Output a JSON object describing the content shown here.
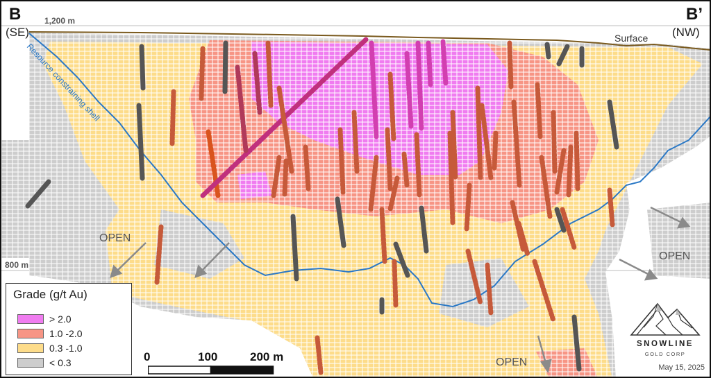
{
  "section_start": {
    "letter": "B",
    "direction": "(SE)"
  },
  "section_end": {
    "letter": "B’",
    "direction": "(NW)"
  },
  "elevations": {
    "top": "1,200 m",
    "bottom": "800 m"
  },
  "surface_label": "Surface",
  "shell_label": "Resource constraining shell",
  "open_labels": [
    "OPEN",
    "OPEN",
    "OPEN"
  ],
  "legend": {
    "title": "Grade (g/t Au)",
    "items": [
      {
        "label": "> 2.0",
        "color": "#f07cf0"
      },
      {
        "label": "1.0 -2.0",
        "color": "#f79585"
      },
      {
        "label": "0.3 -1.0",
        "color": "#fddc8a"
      },
      {
        "label": "< 0.3",
        "color": "#cdcdcd"
      }
    ]
  },
  "scale": {
    "ticks": [
      "0",
      "100",
      "200 m"
    ]
  },
  "logo": {
    "name": "SNOWLINE",
    "subtitle": "GOLD CORP",
    "date": "May 15, 2025"
  },
  "colors": {
    "high": "#f07cf0",
    "mid": "#f79585",
    "low": "#fddc8a",
    "waste": "#cdcdcd",
    "shell": "#2a78c6",
    "surface": "#7a5a1e",
    "drillhole": "#555555"
  }
}
